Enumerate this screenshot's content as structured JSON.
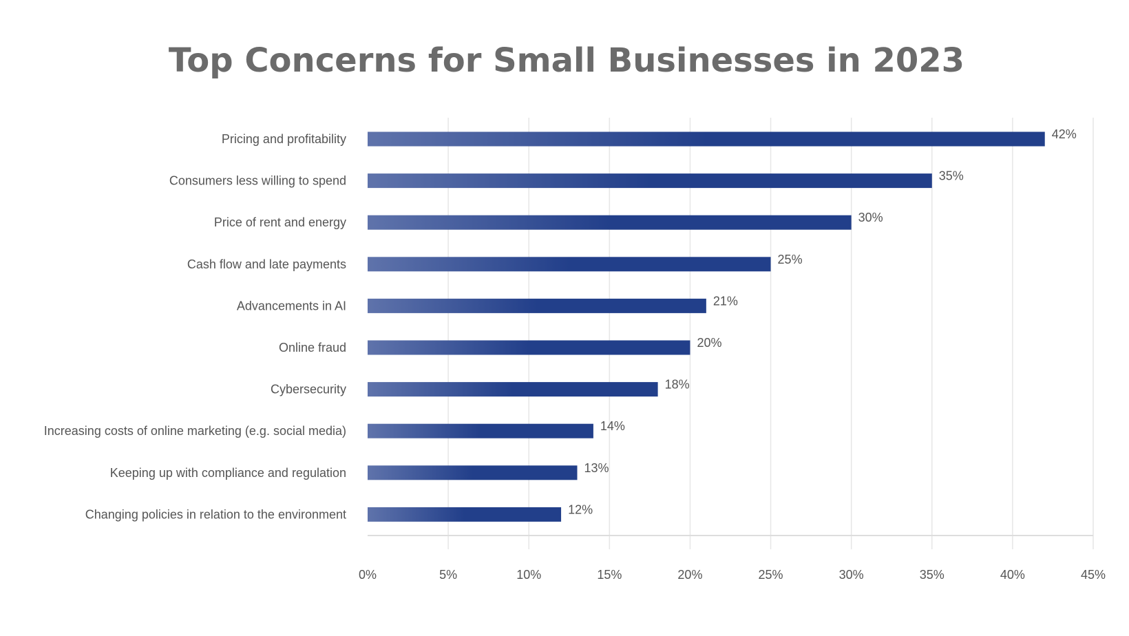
{
  "chart_data": {
    "type": "bar",
    "orientation": "horizontal",
    "title": "Top Concerns for Small Businesses in 2023",
    "categories": [
      "Pricing and profitability",
      "Consumers less willing to spend",
      "Price of rent and energy",
      "Cash flow and late payments",
      "Advancements in AI",
      "Online fraud",
      "Cybersecurity",
      "Increasing costs of online marketing (e.g. social media)",
      "Keeping up with compliance and regulation",
      "Changing policies in relation to the environment"
    ],
    "values": [
      42,
      35,
      30,
      25,
      21,
      20,
      18,
      14,
      13,
      12
    ],
    "data_labels": [
      "42%",
      "35%",
      "30%",
      "25%",
      "21%",
      "20%",
      "18%",
      "14%",
      "13%",
      "12%"
    ],
    "xlim": [
      0,
      45
    ],
    "xticks": [
      0,
      5,
      10,
      15,
      20,
      25,
      30,
      35,
      40,
      45
    ],
    "xtick_labels": [
      "0%",
      "5%",
      "10%",
      "15%",
      "20%",
      "25%",
      "30%",
      "35%",
      "40%",
      "45%"
    ],
    "grid": true,
    "colors": {
      "bar_start": "#5f73ab",
      "bar_end": "#223f8a",
      "text": "#555555",
      "title": "#6b6b6b",
      "grid": "#e6e6e6"
    }
  }
}
